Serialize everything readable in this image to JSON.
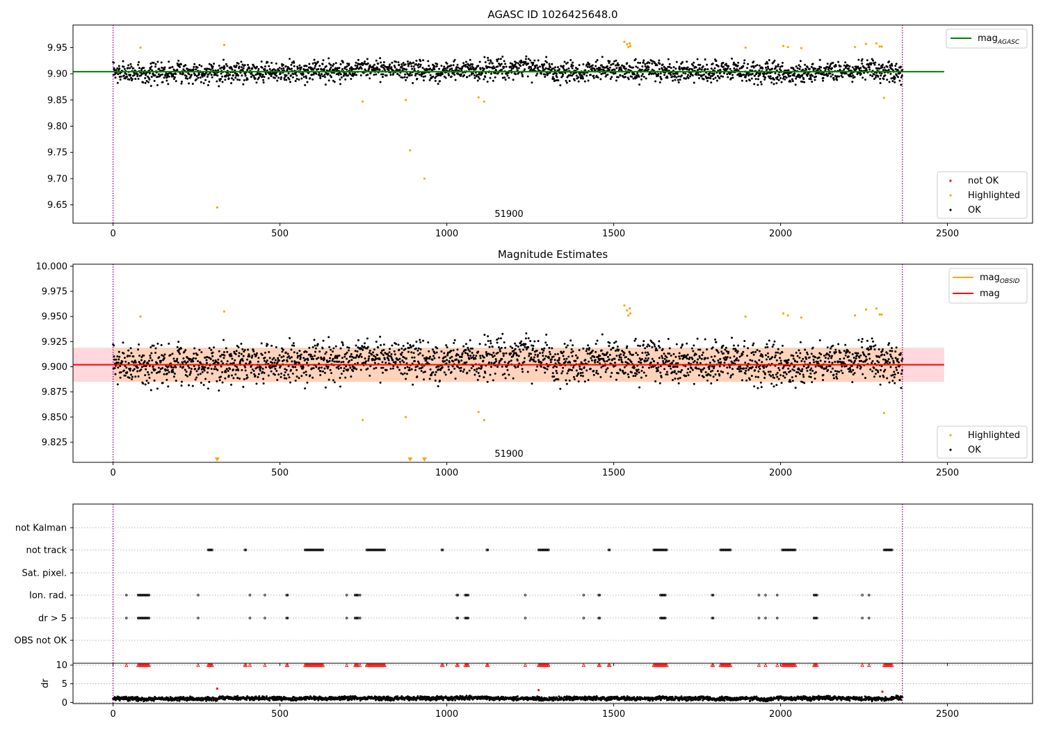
{
  "figure": {
    "panel1_title": "AGASC ID 1026425648.0",
    "panel2_title": "Magnitude Estimates",
    "annotation_obsid": "51900"
  },
  "colors": {
    "ok": "#000000",
    "highlighted": "#ffa500",
    "not_ok": "#ff0000",
    "mag_agasc": "#008000",
    "mag_obsid": "#ffa500",
    "mag": "#ff0000",
    "band_outer": "#ffd7dc",
    "band_inner": "#ffd3bb",
    "obs_bounds": "#800080",
    "flag_points": "#000000",
    "dr_flag_points": "#ff0000"
  },
  "chart_data": [
    {
      "type": "scatter",
      "title": "AGASC ID 1026425648.0",
      "xlabel": "",
      "ylabel": "",
      "xlim": [
        -120,
        2755
      ],
      "ylim": [
        9.615,
        9.993
      ],
      "xticks": [
        0,
        500,
        1000,
        1500,
        2000,
        2500
      ],
      "yticks": [
        9.65,
        9.7,
        9.75,
        9.8,
        9.85,
        9.9,
        9.95
      ],
      "ytick_labels": [
        "9.65",
        "9.70",
        "9.75",
        "9.80",
        "9.85",
        "9.90",
        "9.95"
      ],
      "mag_agasc": 9.904,
      "mag_agasc_xrange": [
        -120,
        2490
      ],
      "obs_bounds": [
        0,
        2365
      ],
      "ok_cloud": {
        "n": 2366,
        "center": 9.904,
        "spread": 0.014,
        "min": 9.858,
        "max": 9.947
      },
      "highlighted_points": [
        {
          "x": 82,
          "y": 9.95
        },
        {
          "x": 312,
          "y": 9.645
        },
        {
          "x": 333,
          "y": 9.955
        },
        {
          "x": 748,
          "y": 9.847
        },
        {
          "x": 877,
          "y": 9.85
        },
        {
          "x": 890,
          "y": 9.754
        },
        {
          "x": 933,
          "y": 9.7
        },
        {
          "x": 1095,
          "y": 9.855
        },
        {
          "x": 1112,
          "y": 9.847
        },
        {
          "x": 1532,
          "y": 9.961
        },
        {
          "x": 1540,
          "y": 9.956
        },
        {
          "x": 1544,
          "y": 9.951
        },
        {
          "x": 1548,
          "y": 9.958
        },
        {
          "x": 1550,
          "y": 9.953
        },
        {
          "x": 1895,
          "y": 9.95
        },
        {
          "x": 2008,
          "y": 9.953
        },
        {
          "x": 2022,
          "y": 9.951
        },
        {
          "x": 2062,
          "y": 9.949
        },
        {
          "x": 2223,
          "y": 9.951
        },
        {
          "x": 2256,
          "y": 9.957
        },
        {
          "x": 2287,
          "y": 9.958
        },
        {
          "x": 2297,
          "y": 9.952
        },
        {
          "x": 2303,
          "y": 9.952
        },
        {
          "x": 2310,
          "y": 9.854
        }
      ],
      "legend_lines": [
        {
          "label": "mag",
          "sub": "AGASC"
        }
      ],
      "legend_points": [
        "not OK",
        "Highlighted",
        "OK"
      ],
      "annotation": "51900"
    },
    {
      "type": "scatter",
      "title": "Magnitude Estimates",
      "xlabel": "",
      "ylabel": "",
      "xlim": [
        -120,
        2755
      ],
      "ylim": [
        9.805,
        10.002
      ],
      "xticks": [
        0,
        500,
        1000,
        1500,
        2000,
        2500
      ],
      "yticks": [
        9.825,
        9.85,
        9.875,
        9.9,
        9.925,
        9.95,
        9.975,
        10.0
      ],
      "ytick_labels": [
        "9.825",
        "9.850",
        "9.875",
        "9.900",
        "9.925",
        "9.950",
        "9.975",
        "10.000"
      ],
      "mag": 9.902,
      "band_outer": [
        9.885,
        9.919
      ],
      "band_inner_xrange": [
        0,
        2365
      ],
      "band_outer_xrange": [
        -120,
        2490
      ],
      "obs_bounds": [
        0,
        2365
      ],
      "ok_cloud": {
        "n": 2366,
        "center": 9.904,
        "spread": 0.014,
        "min": 9.858,
        "max": 9.947
      },
      "highlighted_points": [
        {
          "x": 82,
          "y": 9.95
        },
        {
          "x": 333,
          "y": 9.955
        },
        {
          "x": 748,
          "y": 9.847
        },
        {
          "x": 877,
          "y": 9.85
        },
        {
          "x": 1095,
          "y": 9.855
        },
        {
          "x": 1112,
          "y": 9.847
        },
        {
          "x": 1532,
          "y": 9.961
        },
        {
          "x": 1540,
          "y": 9.956
        },
        {
          "x": 1544,
          "y": 9.951
        },
        {
          "x": 1548,
          "y": 9.958
        },
        {
          "x": 1550,
          "y": 9.953
        },
        {
          "x": 1895,
          "y": 9.95
        },
        {
          "x": 2008,
          "y": 9.953
        },
        {
          "x": 2022,
          "y": 9.951
        },
        {
          "x": 2062,
          "y": 9.949
        },
        {
          "x": 2223,
          "y": 9.951
        },
        {
          "x": 2256,
          "y": 9.957
        },
        {
          "x": 2287,
          "y": 9.958
        },
        {
          "x": 2297,
          "y": 9.952
        },
        {
          "x": 2303,
          "y": 9.952
        },
        {
          "x": 2310,
          "y": 9.854
        }
      ],
      "below_range_markers": [
        312,
        890,
        933
      ],
      "legend_lines": [
        {
          "label": "mag",
          "sub": "OBSID"
        },
        {
          "label": "mag",
          "sub": ""
        }
      ],
      "legend_points": [
        "Highlighted",
        "OK"
      ],
      "annotation": "51900"
    },
    {
      "type": "scatter",
      "title": "",
      "xlim": [
        -120,
        2755
      ],
      "xticks": [
        0,
        500,
        1000,
        1500,
        2000,
        2500
      ],
      "categories": [
        "not Kalman",
        "not track",
        "Sat. pixel.",
        "Ion. rad.",
        "dr > 5",
        "OBS not OK"
      ],
      "flags": {
        "not Kalman": [],
        "not track": [
          [
            285,
            298
          ],
          [
            395,
            400
          ],
          [
            575,
            630
          ],
          [
            760,
            815
          ],
          [
            985,
            990
          ],
          [
            1120,
            1125
          ],
          [
            1275,
            1305
          ],
          [
            1485,
            1490
          ],
          [
            1620,
            1660
          ],
          [
            1820,
            1850
          ],
          [
            2005,
            2045
          ],
          [
            2310,
            2335
          ]
        ],
        "Sat. pixel.": [],
        "Ion. rad.": [
          [
            40,
            40
          ],
          [
            75,
            110
          ],
          [
            255,
            255
          ],
          [
            410,
            410
          ],
          [
            455,
            455
          ],
          [
            520,
            525
          ],
          [
            700,
            700
          ],
          [
            725,
            735
          ],
          [
            740,
            740
          ],
          [
            1030,
            1035
          ],
          [
            1055,
            1065
          ],
          [
            1235,
            1235
          ],
          [
            1410,
            1410
          ],
          [
            1455,
            1460
          ],
          [
            1640,
            1655
          ],
          [
            1795,
            1800
          ],
          [
            1935,
            1935
          ],
          [
            1955,
            1955
          ],
          [
            1990,
            1990
          ],
          [
            2100,
            2110
          ],
          [
            2245,
            2245
          ],
          [
            2265,
            2265
          ]
        ],
        "dr > 5": [
          [
            40,
            40
          ],
          [
            75,
            110
          ],
          [
            255,
            255
          ],
          [
            410,
            410
          ],
          [
            455,
            455
          ],
          [
            520,
            525
          ],
          [
            700,
            700
          ],
          [
            725,
            735
          ],
          [
            740,
            740
          ],
          [
            1030,
            1035
          ],
          [
            1055,
            1065
          ],
          [
            1235,
            1235
          ],
          [
            1410,
            1410
          ],
          [
            1455,
            1460
          ],
          [
            1640,
            1655
          ],
          [
            1795,
            1800
          ],
          [
            1935,
            1935
          ],
          [
            1955,
            1955
          ],
          [
            1990,
            1990
          ],
          [
            2100,
            2110
          ],
          [
            2245,
            2245
          ],
          [
            2265,
            2265
          ]
        ],
        "OBS not OK": []
      },
      "obs_bounds": [
        0,
        2365
      ]
    },
    {
      "type": "scatter",
      "title": "",
      "ylabel": "dr",
      "xlim": [
        -120,
        2755
      ],
      "ylim": [
        -0.3,
        10.5
      ],
      "xticks": [
        0,
        500,
        1000,
        1500,
        2000,
        2500
      ],
      "xtick_labels": [
        "0",
        "500",
        "1000",
        "1500",
        "2000",
        "2500"
      ],
      "yticks": [
        0,
        5,
        10
      ],
      "ytick_labels": [
        "0",
        "5",
        "10"
      ],
      "dr_cloud": {
        "n": 2366,
        "center": 1.1,
        "spread": 0.45,
        "min": 0.2,
        "max": 2.6
      },
      "dr_outliers": [
        {
          "x": 312,
          "y": 3.7
        },
        {
          "x": 1275,
          "y": 3.3
        },
        {
          "x": 2305,
          "y": 2.9
        }
      ],
      "clipped_red_ranges": [
        [
          40,
          40
        ],
        [
          75,
          110
        ],
        [
          255,
          255
        ],
        [
          285,
          298
        ],
        [
          395,
          400
        ],
        [
          410,
          410
        ],
        [
          455,
          455
        ],
        [
          520,
          525
        ],
        [
          575,
          630
        ],
        [
          700,
          700
        ],
        [
          725,
          735
        ],
        [
          740,
          740
        ],
        [
          760,
          815
        ],
        [
          985,
          990
        ],
        [
          1030,
          1035
        ],
        [
          1055,
          1065
        ],
        [
          1120,
          1125
        ],
        [
          1235,
          1235
        ],
        [
          1275,
          1305
        ],
        [
          1410,
          1410
        ],
        [
          1455,
          1460
        ],
        [
          1485,
          1490
        ],
        [
          1620,
          1660
        ],
        [
          1795,
          1800
        ],
        [
          1820,
          1850
        ],
        [
          1935,
          1935
        ],
        [
          1955,
          1955
        ],
        [
          1990,
          1990
        ],
        [
          2005,
          2045
        ],
        [
          2100,
          2110
        ],
        [
          2245,
          2245
        ],
        [
          2265,
          2265
        ],
        [
          2310,
          2335
        ]
      ],
      "obs_bounds": [
        0,
        2365
      ]
    }
  ]
}
